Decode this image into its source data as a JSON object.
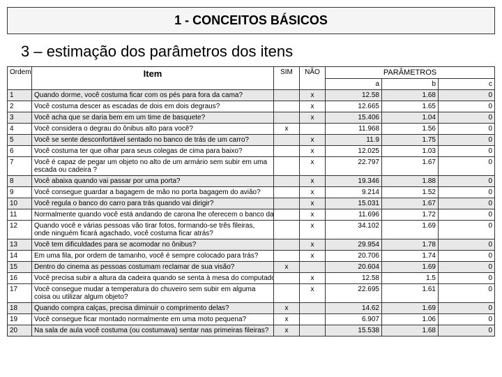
{
  "header": "1 - CONCEITOS BÁSICOS",
  "subtitle": "3 – estimação dos parâmetros dos itens",
  "columns": {
    "ordem": "Ordem",
    "item": "Item",
    "sim": "SIM",
    "nao": "NÃO",
    "parametros": "PARÂMETROS",
    "a": "a",
    "b": "b",
    "c": "c"
  },
  "rows": [
    {
      "ordem": "1",
      "item": "Quando dorme, você costuma ficar com os pés para fora da cama?",
      "sim": "",
      "nao": "x",
      "a": "12.58",
      "b": "1.68",
      "c": "0",
      "wrap": false,
      "shade": true
    },
    {
      "ordem": "2",
      "item": "Você costuma descer as escadas de dois em dois degraus?",
      "sim": "",
      "nao": "x",
      "a": "12.665",
      "b": "1.65",
      "c": "0",
      "wrap": false,
      "shade": false
    },
    {
      "ordem": "3",
      "item": "Você acha que se daria bem em um time de basquete?",
      "sim": "",
      "nao": "x",
      "a": "15.406",
      "b": "1.04",
      "c": "0",
      "wrap": false,
      "shade": true
    },
    {
      "ordem": "4",
      "item": "Você considera o degrau do ônibus alto para você?",
      "sim": "x",
      "nao": "",
      "a": "11.968",
      "b": "1.56",
      "c": "0",
      "wrap": false,
      "shade": false
    },
    {
      "ordem": "5",
      "item": "Você se sente desconfortável sentado no banco de trás de um carro?",
      "sim": "",
      "nao": "x",
      "a": "11.9",
      "b": "1.75",
      "c": "0",
      "wrap": false,
      "shade": true
    },
    {
      "ordem": "6",
      "item": "Você costuma ter que olhar para seus colegas de cima para baixo?",
      "sim": "",
      "nao": "x",
      "a": "12.025",
      "b": "1.03",
      "c": "0",
      "wrap": false,
      "shade": false
    },
    {
      "ordem": "7",
      "item": "Você é capaz de pegar um objeto no alto de um armário sem subir em uma escada ou cadeira ?",
      "sim": "",
      "nao": "x",
      "a": "22.797",
      "b": "1.67",
      "c": "0",
      "wrap": true,
      "shade": false
    },
    {
      "ordem": "8",
      "item": "Você abaixa quando vai passar por uma porta?",
      "sim": "",
      "nao": "x",
      "a": "19.346",
      "b": "1.88",
      "c": "0",
      "wrap": false,
      "shade": true
    },
    {
      "ordem": "9",
      "item": "Você consegue guardar a bagagem de mão no porta bagagem do avião?",
      "sim": "",
      "nao": "x",
      "a": "9.214",
      "b": "1.52",
      "c": "0",
      "wrap": false,
      "shade": false
    },
    {
      "ordem": "10",
      "item": "Você regula o banco do carro para trás quando vai dirigir?",
      "sim": "",
      "nao": "x",
      "a": "15.031",
      "b": "1.67",
      "c": "0",
      "wrap": false,
      "shade": true
    },
    {
      "ordem": "11",
      "item": "Normalmente quando você está andando de carona lhe oferecem o banco da frente?",
      "sim": "",
      "nao": "x",
      "a": "11.696",
      "b": "1.72",
      "c": "0",
      "wrap": false,
      "shade": false
    },
    {
      "ordem": "12",
      "item": "Quando você e várias pessoas vão tirar fotos, formando-se três fileiras, onde ninguém ficará agachado, você costuma ficar atrás?",
      "sim": "",
      "nao": "x",
      "a": "34.102",
      "b": "1.69",
      "c": "0",
      "wrap": true,
      "shade": false
    },
    {
      "ordem": "13",
      "item": "Você tem dificuldades para se acomodar no ônibus?",
      "sim": "",
      "nao": "x",
      "a": "29.954",
      "b": "1.78",
      "c": "0",
      "wrap": false,
      "shade": true
    },
    {
      "ordem": "14",
      "item": "Em uma fila, por ordem de tamanho, você é sempre colocado para trás?",
      "sim": "",
      "nao": "x",
      "a": "20.706",
      "b": "1.74",
      "c": "0",
      "wrap": false,
      "shade": false
    },
    {
      "ordem": "15",
      "item": "Dentro do cinema as pessoas costumam reclamar de sua visão?",
      "sim": "x",
      "nao": "",
      "a": "20.604",
      "b": "1.69",
      "c": "0",
      "wrap": false,
      "shade": true
    },
    {
      "ordem": "16",
      "item": "Você precisa subir a altura da cadeira quando se senta à mesa do computador?",
      "sim": "",
      "nao": "x",
      "a": "12.58",
      "b": "1.5",
      "c": "0",
      "wrap": false,
      "shade": false
    },
    {
      "ordem": "17",
      "item": "Você consegue mudar a temperatura do chuveiro sem subir em alguma coisa ou utilizar algum objeto?",
      "sim": "",
      "nao": "x",
      "a": "22.695",
      "b": "1.61",
      "c": "0",
      "wrap": true,
      "shade": false
    },
    {
      "ordem": "18",
      "item": "Quando compra calças, precisa diminuir o comprimento delas?",
      "sim": "x",
      "nao": "",
      "a": "14.62",
      "b": "1.69",
      "c": "0",
      "wrap": false,
      "shade": true
    },
    {
      "ordem": "19",
      "item": "Você consegue ficar montado normalmente em uma moto pequena?",
      "sim": "x",
      "nao": "",
      "a": "6.907",
      "b": "1.06",
      "c": "0",
      "wrap": false,
      "shade": false
    },
    {
      "ordem": "20",
      "item": "Na sala de aula você costuma (ou costumava) sentar nas primeiras fileiras?",
      "sim": "x",
      "nao": "",
      "a": "15.538",
      "b": "1.68",
      "c": "0",
      "wrap": false,
      "shade": true
    }
  ]
}
